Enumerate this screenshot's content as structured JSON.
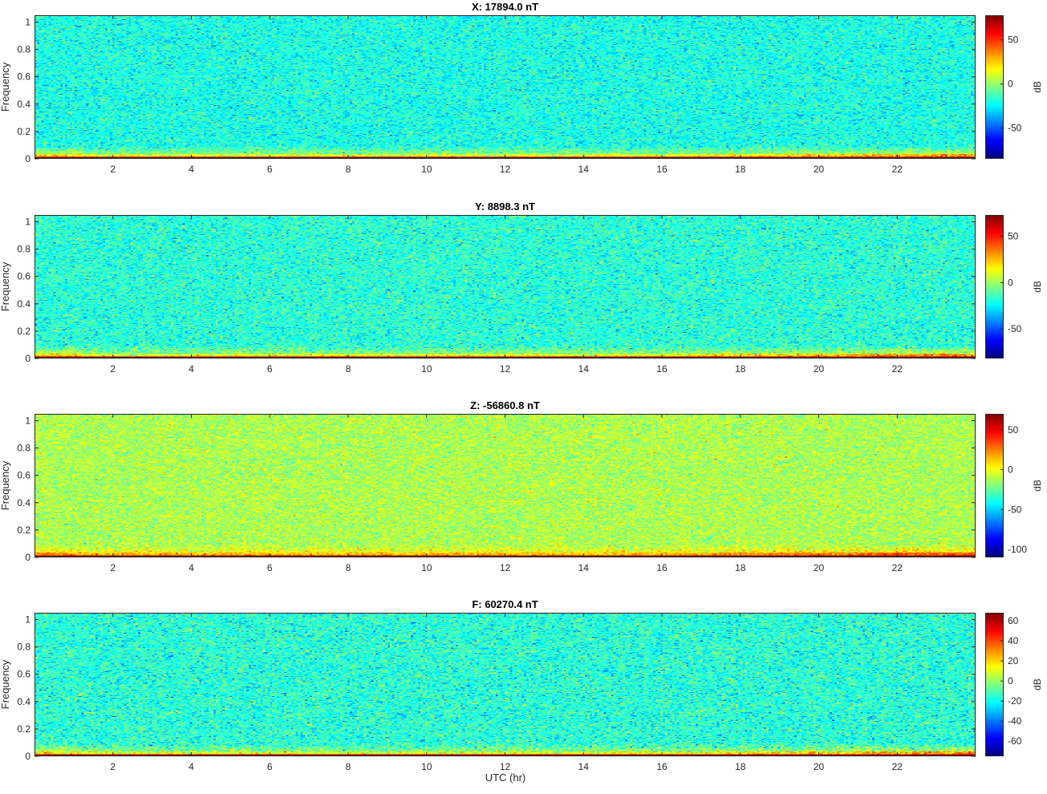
{
  "chart_data": [
    {
      "type": "heatmap",
      "title": "X: 17894.0 nT",
      "ylabel": "Frequency",
      "xlabel": "",
      "xlim": [
        0,
        24
      ],
      "ylim": [
        0,
        1.05
      ],
      "xticks": [
        "2",
        "4",
        "6",
        "8",
        "10",
        "12",
        "14",
        "16",
        "18",
        "20",
        "22"
      ],
      "yticks": [
        "0",
        "0.2",
        "0.4",
        "0.6",
        "0.8",
        "1"
      ],
      "colorbar": {
        "label": "dB",
        "range": [
          -85,
          78
        ],
        "ticks": [
          "50",
          "0",
          "-50"
        ],
        "tick_values": [
          50,
          0,
          -50
        ]
      },
      "colormap": "jet",
      "base_level_db": -20,
      "low_freq_level_db": 30,
      "dc_level_db": 78
    },
    {
      "type": "heatmap",
      "title": "Y: 8898.3 nT",
      "ylabel": "Frequency",
      "xlabel": "",
      "xlim": [
        0,
        24
      ],
      "ylim": [
        0,
        1.05
      ],
      "xticks": [
        "2",
        "4",
        "6",
        "8",
        "10",
        "12",
        "14",
        "16",
        "18",
        "20",
        "22"
      ],
      "yticks": [
        "0",
        "0.2",
        "0.4",
        "0.6",
        "0.8",
        "1"
      ],
      "colorbar": {
        "label": "dB",
        "range": [
          -82,
          73
        ],
        "ticks": [
          "50",
          "0",
          "-50"
        ],
        "tick_values": [
          50,
          0,
          -50
        ]
      },
      "colormap": "jet",
      "base_level_db": -18,
      "low_freq_level_db": 28,
      "dc_level_db": 73
    },
    {
      "type": "heatmap",
      "title": "Z: -56860.8 nT",
      "ylabel": "Frequency",
      "xlabel": "",
      "xlim": [
        0,
        24
      ],
      "ylim": [
        0,
        1.05
      ],
      "xticks": [
        "2",
        "4",
        "6",
        "8",
        "10",
        "12",
        "14",
        "16",
        "18",
        "20",
        "22"
      ],
      "yticks": [
        "0",
        "0.2",
        "0.4",
        "0.6",
        "0.8",
        "1"
      ],
      "colorbar": {
        "label": "dB",
        "range": [
          -110,
          70
        ],
        "ticks": [
          "50",
          "0",
          "-50",
          "-100"
        ],
        "tick_values": [
          50,
          0,
          -50,
          -100
        ]
      },
      "colormap": "jet",
      "base_level_db": -12,
      "low_freq_level_db": 25,
      "dc_level_db": 68
    },
    {
      "type": "heatmap",
      "title": "F: 60270.4 nT",
      "ylabel": "Frequency",
      "xlabel": "UTC (hr)",
      "xlim": [
        0,
        24
      ],
      "ylim": [
        0,
        1.05
      ],
      "xticks": [
        "2",
        "4",
        "6",
        "8",
        "10",
        "12",
        "14",
        "16",
        "18",
        "20",
        "22"
      ],
      "yticks": [
        "0",
        "0.2",
        "0.4",
        "0.6",
        "0.8",
        "1"
      ],
      "colorbar": {
        "label": "dB",
        "range": [
          -75,
          68
        ],
        "ticks": [
          "60",
          "40",
          "20",
          "0",
          "-20",
          "-40",
          "-60"
        ],
        "tick_values": [
          60,
          40,
          20,
          0,
          -20,
          -40,
          -60
        ]
      },
      "colormap": "jet",
      "base_level_db": -16,
      "low_freq_level_db": 22,
      "dc_level_db": 66
    }
  ],
  "xlabel_bottom": "UTC (hr)"
}
